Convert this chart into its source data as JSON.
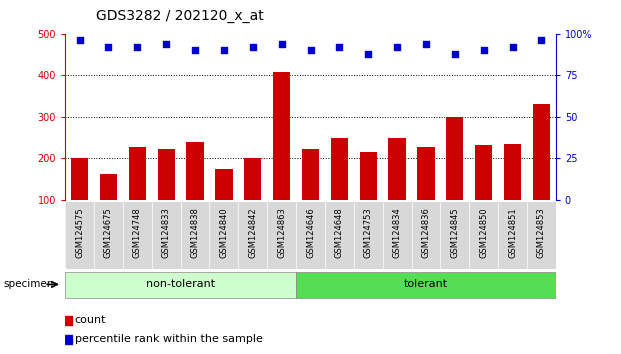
{
  "title": "GDS3282 / 202120_x_at",
  "samples": [
    "GSM124575",
    "GSM124675",
    "GSM124748",
    "GSM124833",
    "GSM124838",
    "GSM124840",
    "GSM124842",
    "GSM124863",
    "GSM124646",
    "GSM124648",
    "GSM124753",
    "GSM124834",
    "GSM124836",
    "GSM124845",
    "GSM124850",
    "GSM124851",
    "GSM124853"
  ],
  "counts": [
    200,
    162,
    228,
    222,
    240,
    175,
    200,
    408,
    222,
    248,
    215,
    250,
    228,
    300,
    233,
    235,
    330
  ],
  "percentile_ranks": [
    96,
    92,
    92,
    94,
    90,
    90,
    92,
    94,
    90,
    92,
    88,
    92,
    94,
    88,
    90,
    92,
    96
  ],
  "non_tolerant_count": 8,
  "tolerant_count": 9,
  "ylim_left": [
    100,
    500
  ],
  "ylim_right": [
    0,
    100
  ],
  "bar_color": "#cc0000",
  "dot_color": "#0000cc",
  "non_tolerant_color": "#ccffcc",
  "tolerant_color": "#55dd55",
  "left_tick_color": "#cc0000",
  "right_tick_color": "#0000cc",
  "title_fontsize": 10,
  "tick_fontsize": 7,
  "label_fontsize": 8,
  "grid_yticks": [
    200,
    300,
    400
  ],
  "left_yticks": [
    100,
    200,
    300,
    400,
    500
  ],
  "right_yticks": [
    0,
    25,
    50,
    75,
    100
  ],
  "right_yticklabels": [
    "0",
    "25",
    "50",
    "75",
    "100%"
  ],
  "specimen_label": "specimen",
  "legend_count_label": "count",
  "legend_pct_label": "percentile rank within the sample",
  "non_tolerant_label": "non-tolerant",
  "tolerant_label": "tolerant"
}
